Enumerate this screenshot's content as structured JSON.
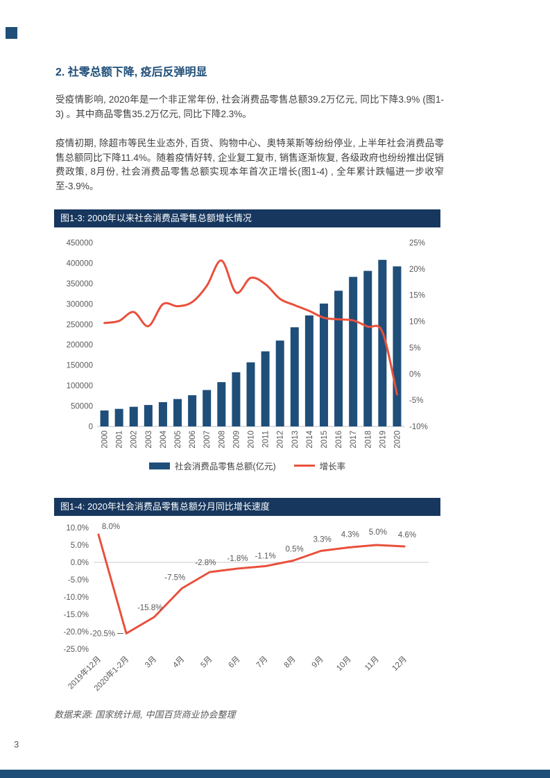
{
  "page": {
    "heading": "2. 社零总额下降, 疫后反弹明显",
    "paragraph1": "受疫情影响, 2020年是一个非正常年份, 社会消费品零售总额39.2万亿元, 同比下降3.9% (图1-3) 。其中商品零售35.2万亿元, 同比下降2.3%。",
    "paragraph2": "疫情初期, 除超市等民生业态外, 百货、购物中心、奥特莱斯等纷纷停业, 上半年社会消费品零售总额同比下降11.4%。随着疫情好转, 企业复工复市, 销售逐渐恢复, 各级政府也纷纷推出促销费政策, 8月份, 社会消费品零售总额实现本年首次正增长(图1-4) , 全年累计跌幅进一步收窄至-3.9%。",
    "source_note": "数据来源: 国家统计局, 中国百货商业协会整理",
    "page_number": "3"
  },
  "colors": {
    "navy": "#1F4E79",
    "titlebar_navy": "#17375E",
    "red": "#E8503C",
    "axis_gray": "#595959",
    "gridline_gray": "#C9C9C9",
    "axisline_gray": "#BFBFBF"
  },
  "chart_data": [
    {
      "type": "bar",
      "title": "图1-3: 2000年以来社会消费品零售总额增长情况",
      "categories": [
        "2000",
        "2001",
        "2002",
        "2003",
        "2004",
        "2005",
        "2006",
        "2007",
        "2008",
        "2009",
        "2010",
        "2011",
        "2012",
        "2013",
        "2014",
        "2015",
        "2016",
        "2017",
        "2018",
        "2019",
        "2020"
      ],
      "series": [
        {
          "name": "社会消费品零售总额(亿元)",
          "type": "bar",
          "color": "#1F4E79",
          "values": [
            39106,
            43055,
            48136,
            52516,
            59501,
            67177,
            76410,
            89210,
            108488,
            132678,
            156998,
            183919,
            210307,
            242843,
            271896,
            300931,
            332316,
            366262,
            380987,
            408017,
            391981
          ]
        },
        {
          "name": "增长率",
          "type": "line",
          "color": "#E8503C",
          "values": [
            9.7,
            10.1,
            11.8,
            9.1,
            13.3,
            12.9,
            13.7,
            16.8,
            21.6,
            15.5,
            18.3,
            17.1,
            14.3,
            13.1,
            12.0,
            10.7,
            10.4,
            10.2,
            9.0,
            8.0,
            -3.9
          ]
        }
      ],
      "left_axis": {
        "min": 0,
        "max": 450000,
        "step": 50000
      },
      "right_axis": {
        "min": -10,
        "max": 25,
        "step": 5,
        "suffix": "%"
      },
      "grid": false,
      "legend_position": "bottom"
    },
    {
      "type": "line",
      "title": "图1-4: 2020年社会消费品零售总额分月同比增长速度",
      "categories": [
        "2019年12月",
        "2020年1-2月",
        "3月",
        "4月",
        "5月",
        "6月",
        "7月",
        "8月",
        "9月",
        "10月",
        "11月",
        "12月"
      ],
      "values": [
        8.0,
        -20.5,
        -15.8,
        -7.5,
        -2.8,
        -1.8,
        -1.1,
        0.5,
        3.3,
        4.3,
        5.0,
        4.6
      ],
      "point_labels": [
        "8.0%",
        "-20.5%",
        "-15.8%",
        "-7.5%",
        "-2.8%",
        "-1.8%",
        "-1.1%",
        "0.5%",
        "3.3%",
        "4.3%",
        "5.0%",
        "4.6%"
      ],
      "y_axis": {
        "min": -25,
        "max": 10,
        "step": 5,
        "suffix": "%",
        "decimals": 1
      },
      "line_color": "#E8503C",
      "gridline_at": 0,
      "legend_position": "none"
    }
  ]
}
